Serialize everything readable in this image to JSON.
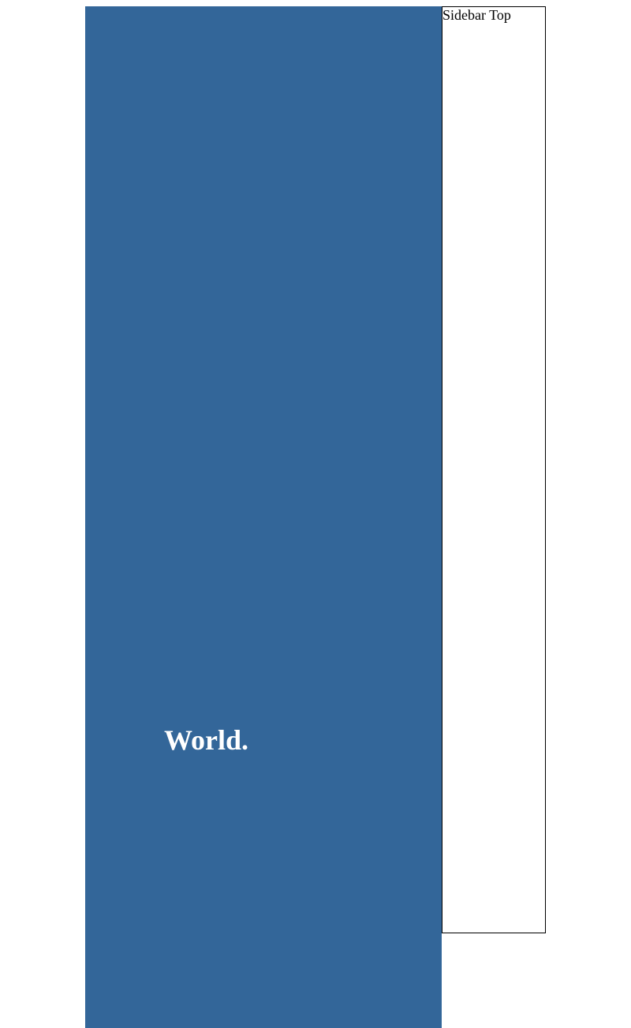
{
  "main": {
    "headline": "World.",
    "background_color": "#336699",
    "text_color": "#ffffff"
  },
  "sidebar": {
    "label": "Sidebar Top",
    "border_color": "#000000",
    "background_color": "#ffffff"
  }
}
